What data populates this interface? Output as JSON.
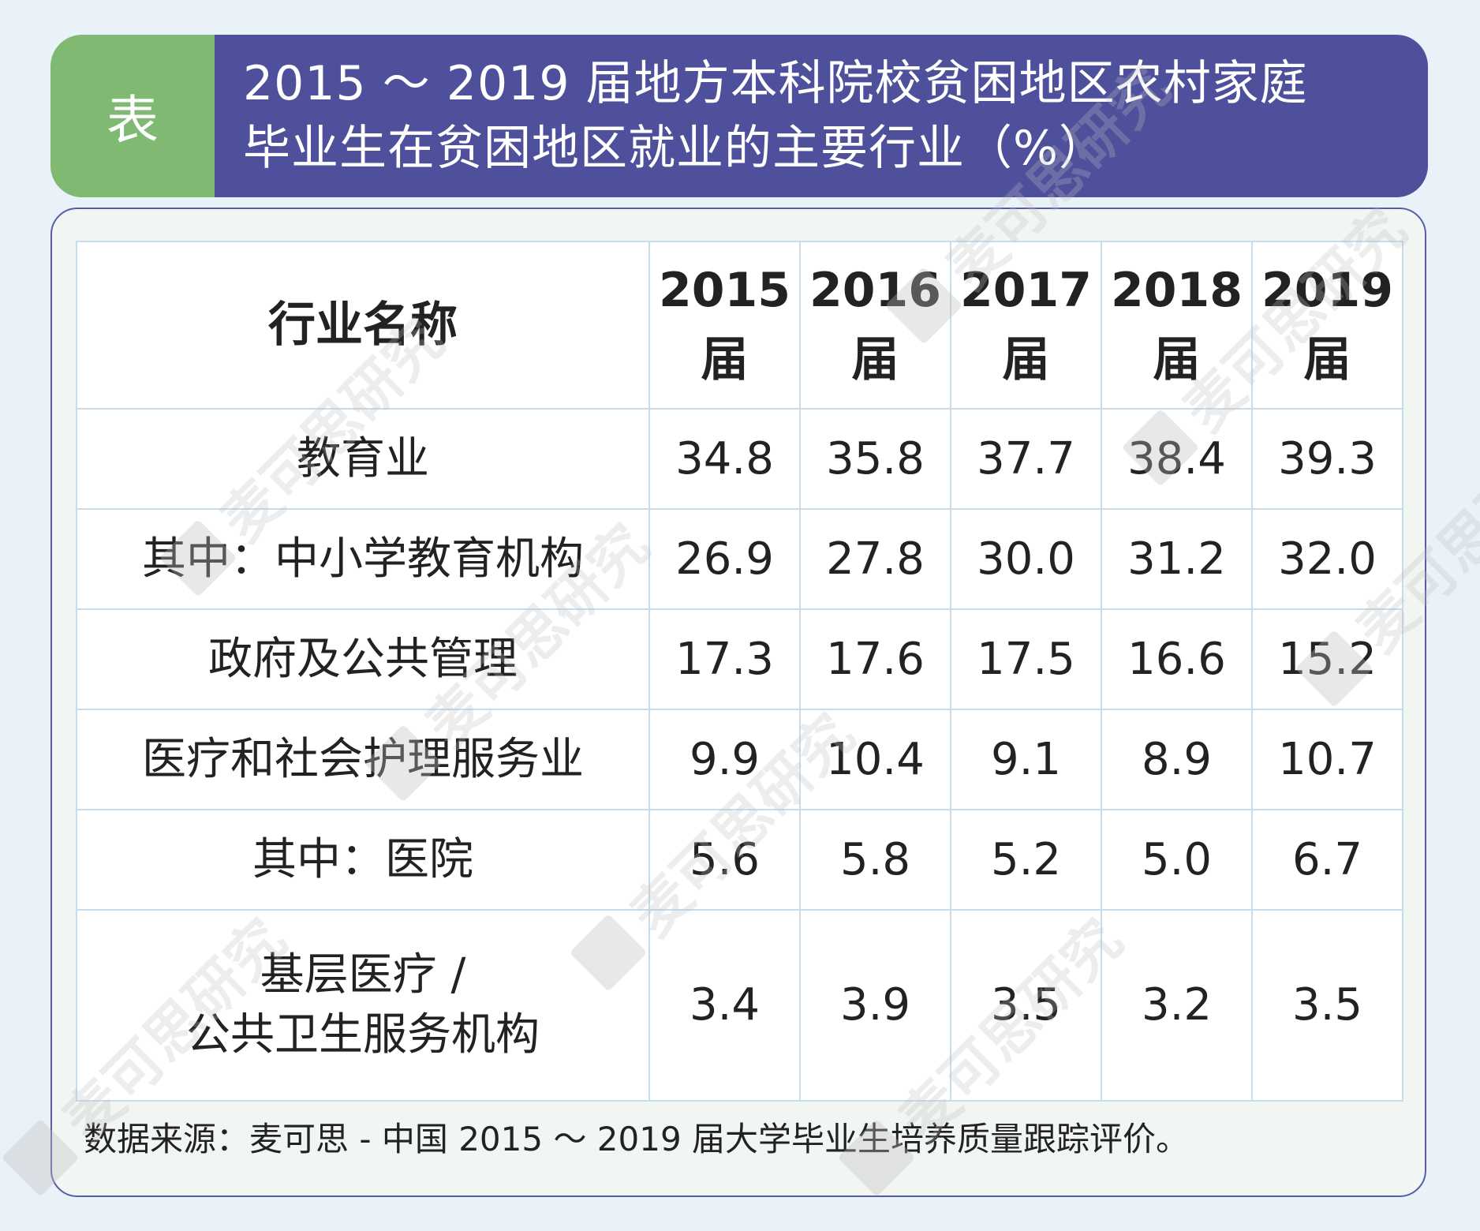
{
  "banner": {
    "tag": "表",
    "title_line1": "2015 ～ 2019 届地方本科院校贫困地区农村家庭",
    "title_line2": "毕业生在贫困地区就业的主要行业（%）"
  },
  "table": {
    "header": {
      "name": "行业名称",
      "years": [
        {
          "year": "2015",
          "suffix": "届"
        },
        {
          "year": "2016",
          "suffix": "届"
        },
        {
          "year": "2017",
          "suffix": "届"
        },
        {
          "year": "2018",
          "suffix": "届"
        },
        {
          "year": "2019",
          "suffix": "届"
        }
      ]
    },
    "rows": [
      {
        "name": "教育业",
        "values": [
          "34.8",
          "35.8",
          "37.7",
          "38.4",
          "39.3"
        ]
      },
      {
        "name": "其中：中小学教育机构",
        "values": [
          "26.9",
          "27.8",
          "30.0",
          "31.2",
          "32.0"
        ]
      },
      {
        "name": "政府及公共管理",
        "values": [
          "17.3",
          "17.6",
          "17.5",
          "16.6",
          "15.2"
        ]
      },
      {
        "name": "医疗和社会护理服务业",
        "values": [
          "9.9",
          "10.4",
          "9.1",
          "8.9",
          "10.7"
        ]
      },
      {
        "name": "其中：医院",
        "values": [
          "5.6",
          "5.8",
          "5.2",
          "5.0",
          "6.7"
        ]
      },
      {
        "name_line1": "基层医疗 /",
        "name_line2": "公共卫生服务机构",
        "values": [
          "3.4",
          "3.9",
          "3.5",
          "3.2",
          "3.5"
        ]
      }
    ]
  },
  "source_note": "数据来源：麦可思 - 中国 2015 ～ 2019 届大学毕业生培养质量跟踪评价。",
  "watermark": {
    "text": "麦可思研究"
  },
  "colors": {
    "background": "#eaf2f9",
    "banner_tag": "#7fb972",
    "banner_title": "#4e509c",
    "panel": "#f2f6f2",
    "table_border": "#c6dcea"
  }
}
